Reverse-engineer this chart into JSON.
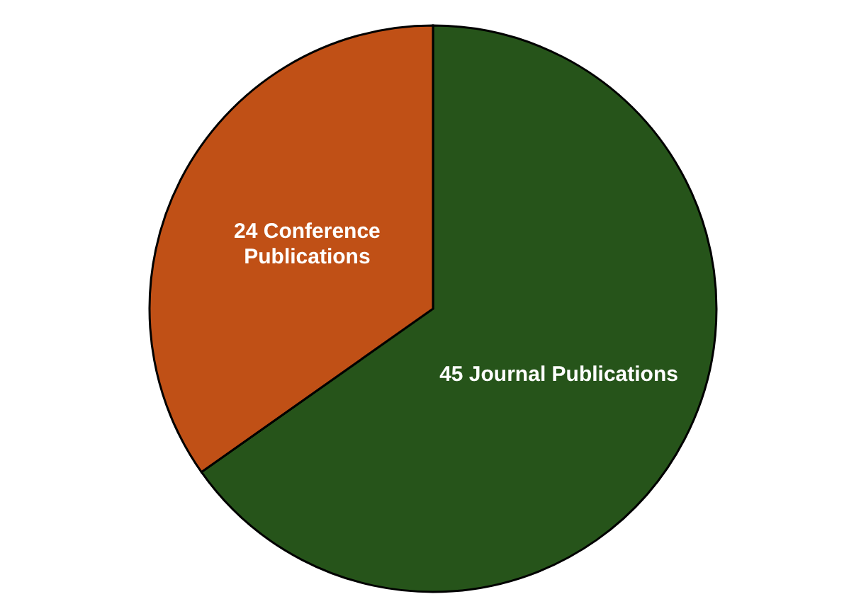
{
  "chart_data": {
    "type": "pie",
    "categories": [
      "45 Journal Publications",
      "24 Conference Publications"
    ],
    "values": [
      45,
      24
    ],
    "colors": [
      "#26541a",
      "#c05016"
    ],
    "legend": false
  }
}
